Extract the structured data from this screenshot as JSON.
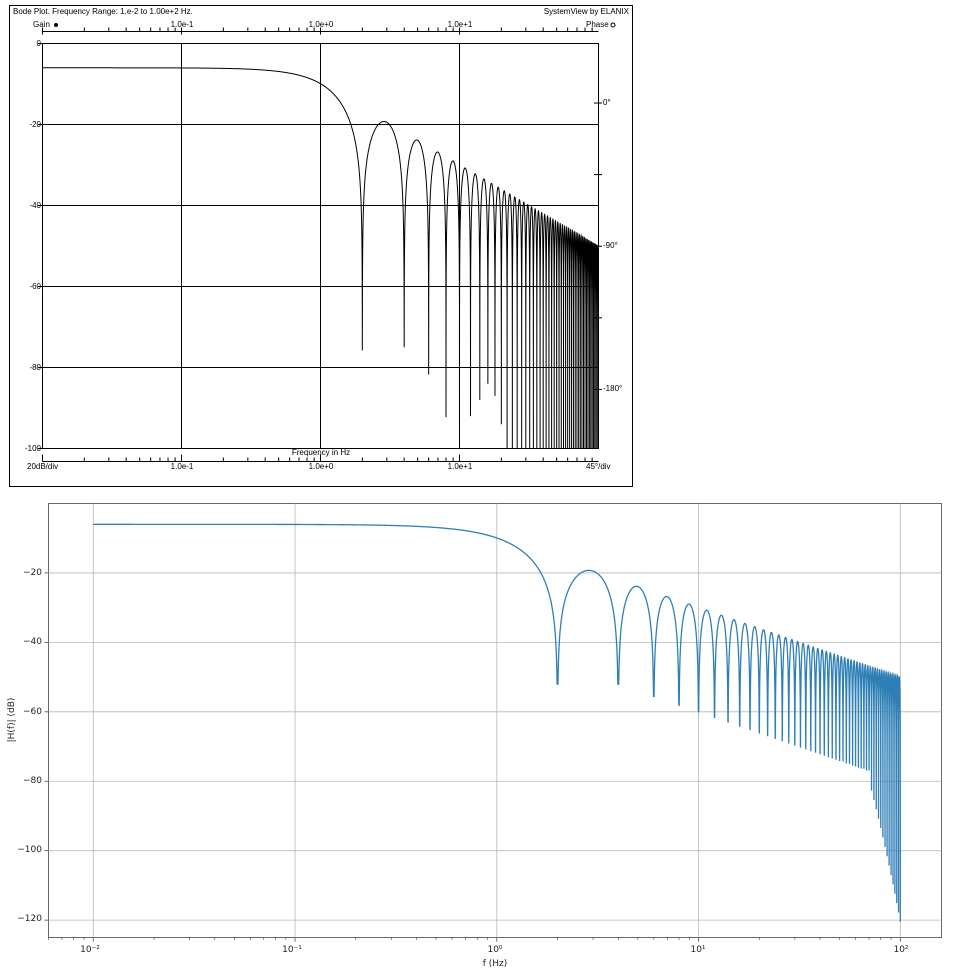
{
  "colors": {
    "sv_curve": "#000000",
    "mpl_curve": "#2f7fb6",
    "mpl_grid": "#b8b8b8"
  },
  "chart_data": [
    {
      "type": "line",
      "title": "Bode Plot.  Frequency Range: 1.e-2 to 1.00e+2 Hz.",
      "subtitle": "SystemView by ELANIX",
      "xlabel": "Frequency in Hz",
      "ylabel": "Gain",
      "y2label": "Phase",
      "y_scale_label": "20dB/div",
      "y2_scale_label": "45°/div",
      "xscale": "log",
      "xlim": [
        0.01,
        100
      ],
      "ylim": [
        -100,
        0
      ],
      "y2lim": [
        90,
        -225
      ],
      "xticks": [
        0.1,
        1,
        10
      ],
      "xtick_labels": [
        "1.0e-1",
        "1.0e+0",
        "1.0e+1"
      ],
      "yticks": [
        0,
        -20,
        -40,
        -60,
        -80,
        -100
      ],
      "ytick_labels": [
        "0",
        "-20",
        "-40",
        "-60",
        "-80",
        "-100"
      ],
      "y2ticks": [
        0,
        -90,
        -180
      ],
      "y2tick_labels": [
        "0°",
        "-90°",
        "-180°"
      ],
      "grid": true,
      "series": [
        {
          "name": "Gain",
          "fmin": 0.01,
          "fmax": 100,
          "nulls_at_multiples_of": 2,
          "start_db": -6.0,
          "null_depths_db": [
            -71,
            -75,
            -78,
            -86,
            -83,
            -92,
            -88,
            -84,
            -87,
            -94
          ]
        }
      ]
    },
    {
      "type": "line",
      "title": "",
      "xlabel": "f (Hz)",
      "ylabel": "|H(f)| (dB)",
      "xscale": "log",
      "xlim": [
        0.006,
        160
      ],
      "ylim": [
        -125,
        0
      ],
      "xticks": [
        0.01,
        0.1,
        1,
        10,
        100
      ],
      "xtick_labels": [
        "10⁻²",
        "10⁻¹",
        "10⁰",
        "10¹",
        "10²"
      ],
      "yticks": [
        -20,
        -40,
        -60,
        -80,
        -100,
        -120
      ],
      "ytick_labels": [
        "−20",
        "−40",
        "−60",
        "−80",
        "−100",
        "−120"
      ],
      "grid": true,
      "series": [
        {
          "fmin": 0.01,
          "fmax": 100,
          "nulls_at_multiples_of": 2,
          "start_db": -6.0,
          "null_depths_db": [
            -52,
            -58,
            -62,
            -68,
            -72,
            -75,
            -77
          ]
        }
      ]
    }
  ]
}
